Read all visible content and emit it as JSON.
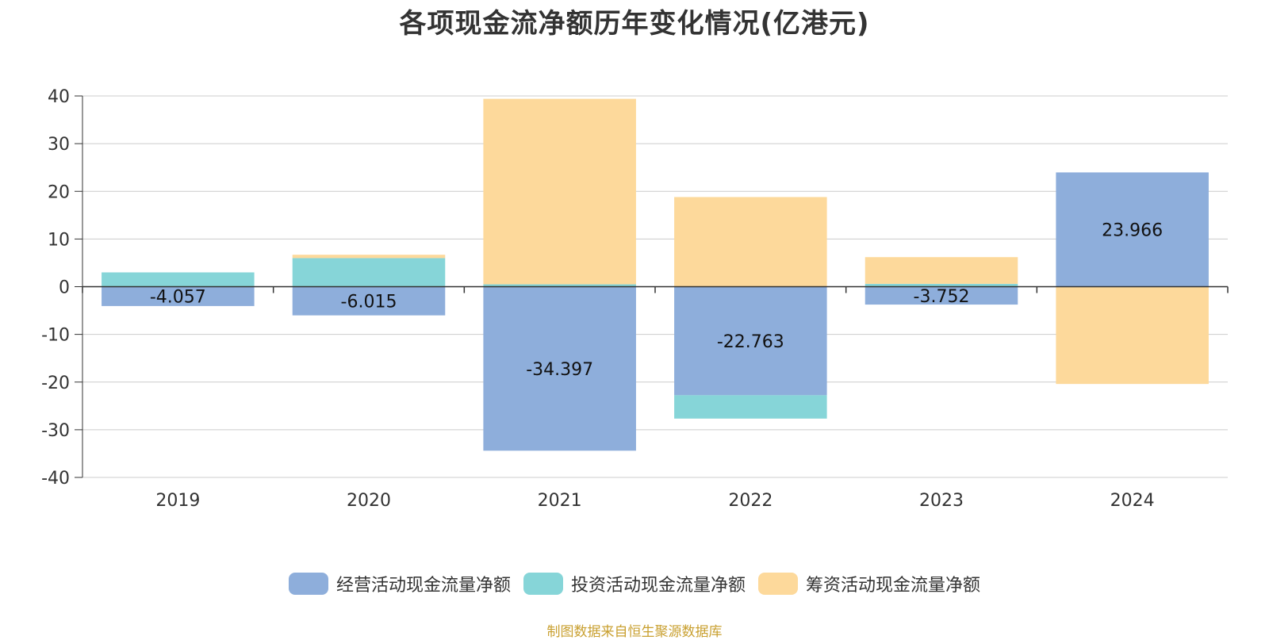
{
  "title": "各项现金流净额历年变化情况(亿港元)",
  "source": "制图数据来自恒生聚源数据库",
  "colors": {
    "operating": "#8eaedb",
    "investing": "#86d5d8",
    "financing": "#fdd99b",
    "axis": "#333333",
    "grid": "#cccccc",
    "tick_text": "#333333"
  },
  "chart_data": {
    "type": "bar",
    "stacked": true,
    "title": "各项现金流净额历年变化情况(亿港元)",
    "categories": [
      "2019",
      "2020",
      "2021",
      "2022",
      "2023",
      "2024"
    ],
    "ylim": [
      -40,
      40
    ],
    "yticks": [
      40,
      30,
      20,
      10,
      0,
      -10,
      -20,
      -30,
      -40
    ],
    "grid": true,
    "legend_position": "bottom-center",
    "series": [
      {
        "name": "经营活动现金流量净额",
        "color_key": "operating",
        "values": [
          -4.057,
          -6.015,
          -34.397,
          -22.763,
          -3.752,
          23.966
        ],
        "labels": [
          "-4.057",
          "-6.015",
          "-34.397",
          "-22.763",
          "-3.752",
          "23.966"
        ]
      },
      {
        "name": "投资活动现金流量净额",
        "color_key": "investing",
        "values": [
          3.0,
          6.0,
          0.5,
          -4.9,
          0.6,
          0.0
        ]
      },
      {
        "name": "筹资活动现金流量净额",
        "color_key": "financing",
        "values": [
          0.0,
          0.7,
          38.9,
          18.8,
          5.6,
          -20.4
        ]
      }
    ]
  }
}
